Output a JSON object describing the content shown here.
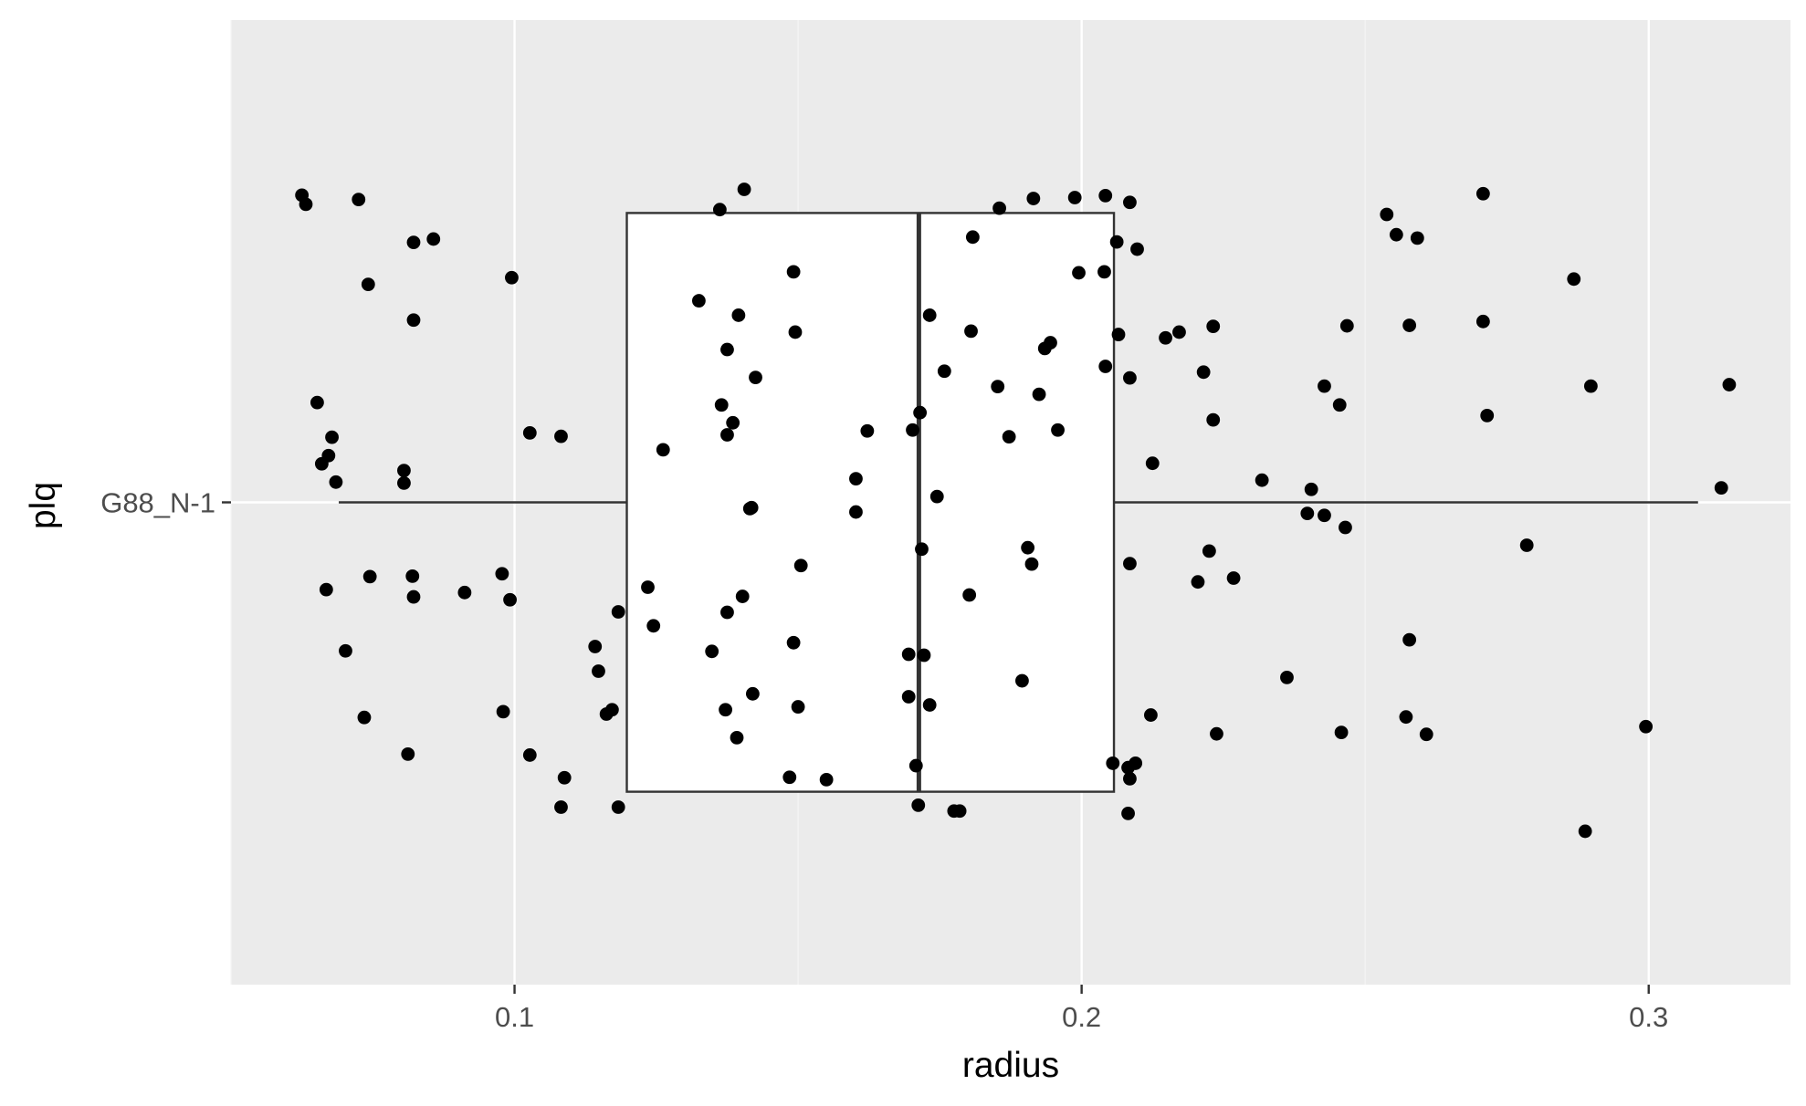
{
  "chart_data": {
    "type": "boxplot",
    "orientation": "horizontal",
    "title": "",
    "xlabel": "radius",
    "ylabel": "plq",
    "categories": [
      "G88_N-1"
    ],
    "x_ticks": [
      0.1,
      0.2,
      0.3
    ],
    "x_tick_labels": [
      "0.1",
      "0.2",
      "0.3"
    ],
    "xlim": [
      0.05,
      0.325
    ],
    "grid": true,
    "legend": "none",
    "colors": {
      "panel_background": "#ebebeb",
      "grid_major": "#ffffff",
      "grid_minor": "#f5f5f5",
      "box_fill": "#ffffff",
      "box_line": "#333333",
      "points": "#000000",
      "tick_text": "#4d4d4d",
      "axis_title": "#000000"
    },
    "box": {
      "category": "G88_N-1",
      "whisker_low": 0.069,
      "q1": 0.1198,
      "median": 0.1713,
      "q3": 0.2057,
      "whisker_high": 0.3087
    },
    "points": [
      {
        "x": 0.0625,
        "y": 0.637
      },
      {
        "x": 0.0632,
        "y": 0.618
      },
      {
        "x": 0.0725,
        "y": 0.628
      },
      {
        "x": 0.0742,
        "y": 0.452
      },
      {
        "x": 0.0822,
        "y": 0.539
      },
      {
        "x": 0.0822,
        "y": 0.378
      },
      {
        "x": 0.0857,
        "y": 0.546
      },
      {
        "x": 0.0995,
        "y": 0.466
      },
      {
        "x": 0.0652,
        "y": 0.207
      },
      {
        "x": 0.0678,
        "y": 0.135
      },
      {
        "x": 0.0672,
        "y": 0.097
      },
      {
        "x": 0.0685,
        "y": 0.042
      },
      {
        "x": 0.066,
        "y": 0.08
      },
      {
        "x": 0.0805,
        "y": 0.066
      },
      {
        "x": 0.0805,
        "y": 0.04
      },
      {
        "x": 0.1027,
        "y": 0.144
      },
      {
        "x": 0.1082,
        "y": 0.137
      },
      {
        "x": 0.0668,
        "y": -0.181
      },
      {
        "x": 0.0745,
        "y": -0.154
      },
      {
        "x": 0.082,
        "y": -0.153
      },
      {
        "x": 0.0822,
        "y": -0.196
      },
      {
        "x": 0.0912,
        "y": -0.187
      },
      {
        "x": 0.0978,
        "y": -0.148
      },
      {
        "x": 0.0992,
        "y": -0.202
      },
      {
        "x": 0.0702,
        "y": -0.308
      },
      {
        "x": 0.0735,
        "y": -0.446
      },
      {
        "x": 0.0812,
        "y": -0.522
      },
      {
        "x": 0.098,
        "y": -0.434
      },
      {
        "x": 0.1027,
        "y": -0.524
      },
      {
        "x": 0.1088,
        "y": -0.571
      },
      {
        "x": 0.1082,
        "y": -0.632
      },
      {
        "x": 0.1142,
        "y": -0.299
      },
      {
        "x": 0.1148,
        "y": -0.35
      },
      {
        "x": 0.1183,
        "y": -0.227
      },
      {
        "x": 0.1162,
        "y": -0.439
      },
      {
        "x": 0.1172,
        "y": -0.43
      },
      {
        "x": 0.1183,
        "y": -0.632
      },
      {
        "x": 0.1235,
        "y": -0.176
      },
      {
        "x": 0.1245,
        "y": -0.256
      },
      {
        "x": 0.1262,
        "y": 0.109
      },
      {
        "x": 0.1325,
        "y": 0.418
      },
      {
        "x": 0.1362,
        "y": 0.607
      },
      {
        "x": 0.1405,
        "y": 0.649
      },
      {
        "x": 0.1395,
        "y": 0.388
      },
      {
        "x": 0.1375,
        "y": 0.317
      },
      {
        "x": 0.1425,
        "y": 0.259
      },
      {
        "x": 0.1365,
        "y": 0.202
      },
      {
        "x": 0.1385,
        "y": 0.165
      },
      {
        "x": 0.1375,
        "y": 0.14
      },
      {
        "x": 0.1418,
        "y": -0.011
      },
      {
        "x": 0.1415,
        "y": -0.013
      },
      {
        "x": 0.1402,
        "y": -0.195
      },
      {
        "x": 0.1375,
        "y": -0.228
      },
      {
        "x": 0.1348,
        "y": -0.309
      },
      {
        "x": 0.142,
        "y": -0.397
      },
      {
        "x": 0.1372,
        "y": -0.43
      },
      {
        "x": 0.1392,
        "y": -0.488
      },
      {
        "x": 0.1492,
        "y": 0.478
      },
      {
        "x": 0.1495,
        "y": 0.353
      },
      {
        "x": 0.1505,
        "y": -0.131
      },
      {
        "x": 0.1492,
        "y": -0.291
      },
      {
        "x": 0.15,
        "y": -0.424
      },
      {
        "x": 0.1485,
        "y": -0.57
      },
      {
        "x": 0.155,
        "y": -0.575
      },
      {
        "x": 0.1622,
        "y": 0.148
      },
      {
        "x": 0.1602,
        "y": 0.049
      },
      {
        "x": 0.1602,
        "y": -0.02
      },
      {
        "x": 0.1702,
        "y": 0.15
      },
      {
        "x": 0.1715,
        "y": 0.186
      },
      {
        "x": 0.1732,
        "y": 0.388
      },
      {
        "x": 0.1758,
        "y": 0.272
      },
      {
        "x": 0.1745,
        "y": 0.012
      },
      {
        "x": 0.1718,
        "y": -0.097
      },
      {
        "x": 0.1695,
        "y": -0.315
      },
      {
        "x": 0.1722,
        "y": -0.317
      },
      {
        "x": 0.1695,
        "y": -0.403
      },
      {
        "x": 0.1732,
        "y": -0.42
      },
      {
        "x": 0.1708,
        "y": -0.546
      },
      {
        "x": 0.1712,
        "y": -0.628
      },
      {
        "x": 0.1775,
        "y": -0.64
      },
      {
        "x": 0.1785,
        "y": -0.64
      },
      {
        "x": 0.1808,
        "y": 0.55
      },
      {
        "x": 0.1805,
        "y": 0.355
      },
      {
        "x": 0.1802,
        "y": -0.192
      },
      {
        "x": 0.1855,
        "y": 0.61
      },
      {
        "x": 0.1852,
        "y": 0.24
      },
      {
        "x": 0.1872,
        "y": 0.136
      },
      {
        "x": 0.1915,
        "y": 0.63
      },
      {
        "x": 0.1945,
        "y": 0.331
      },
      {
        "x": 0.1935,
        "y": 0.319
      },
      {
        "x": 0.1925,
        "y": 0.224
      },
      {
        "x": 0.1958,
        "y": 0.15
      },
      {
        "x": 0.1905,
        "y": -0.094
      },
      {
        "x": 0.1912,
        "y": -0.128
      },
      {
        "x": 0.1895,
        "y": -0.37
      },
      {
        "x": 0.1988,
        "y": 0.632
      },
      {
        "x": 0.2042,
        "y": 0.636
      },
      {
        "x": 0.1995,
        "y": 0.476
      },
      {
        "x": 0.204,
        "y": 0.478
      },
      {
        "x": 0.2085,
        "y": 0.622
      },
      {
        "x": 0.2062,
        "y": 0.54
      },
      {
        "x": 0.2098,
        "y": 0.525
      },
      {
        "x": 0.2065,
        "y": 0.348
      },
      {
        "x": 0.2042,
        "y": 0.282
      },
      {
        "x": 0.2085,
        "y": 0.258
      },
      {
        "x": 0.2125,
        "y": 0.081
      },
      {
        "x": 0.2085,
        "y": -0.127
      },
      {
        "x": 0.2095,
        "y": -0.541
      },
      {
        "x": 0.2082,
        "y": -0.55
      },
      {
        "x": 0.2055,
        "y": -0.541
      },
      {
        "x": 0.2085,
        "y": -0.573
      },
      {
        "x": 0.2082,
        "y": -0.645
      },
      {
        "x": 0.2122,
        "y": -0.441
      },
      {
        "x": 0.2148,
        "y": 0.341
      },
      {
        "x": 0.2172,
        "y": 0.353
      },
      {
        "x": 0.2232,
        "y": 0.365
      },
      {
        "x": 0.2215,
        "y": 0.27
      },
      {
        "x": 0.2232,
        "y": 0.171
      },
      {
        "x": 0.2205,
        "y": -0.165
      },
      {
        "x": 0.2225,
        "y": -0.101
      },
      {
        "x": 0.2268,
        "y": -0.157
      },
      {
        "x": 0.2238,
        "y": -0.48
      },
      {
        "x": 0.2318,
        "y": 0.046
      },
      {
        "x": 0.2405,
        "y": 0.027
      },
      {
        "x": 0.2398,
        "y": -0.023
      },
      {
        "x": 0.2428,
        "y": 0.241
      },
      {
        "x": 0.2455,
        "y": 0.202
      },
      {
        "x": 0.2428,
        "y": -0.027
      },
      {
        "x": 0.2465,
        "y": -0.052
      },
      {
        "x": 0.2468,
        "y": 0.366
      },
      {
        "x": 0.2362,
        "y": -0.363
      },
      {
        "x": 0.2458,
        "y": -0.477
      },
      {
        "x": 0.2538,
        "y": 0.597
      },
      {
        "x": 0.2555,
        "y": 0.555
      },
      {
        "x": 0.2592,
        "y": 0.548
      },
      {
        "x": 0.2578,
        "y": 0.367
      },
      {
        "x": 0.2578,
        "y": -0.285
      },
      {
        "x": 0.2572,
        "y": -0.445
      },
      {
        "x": 0.2608,
        "y": -0.481
      },
      {
        "x": 0.2708,
        "y": 0.64
      },
      {
        "x": 0.2708,
        "y": 0.375
      },
      {
        "x": 0.2715,
        "y": 0.18
      },
      {
        "x": 0.2785,
        "y": -0.089
      },
      {
        "x": 0.2868,
        "y": 0.463
      },
      {
        "x": 0.2898,
        "y": 0.241
      },
      {
        "x": 0.2888,
        "y": -0.682
      },
      {
        "x": 0.2995,
        "y": -0.465
      },
      {
        "x": 0.3128,
        "y": 0.03
      },
      {
        "x": 0.3142,
        "y": 0.244
      }
    ]
  }
}
